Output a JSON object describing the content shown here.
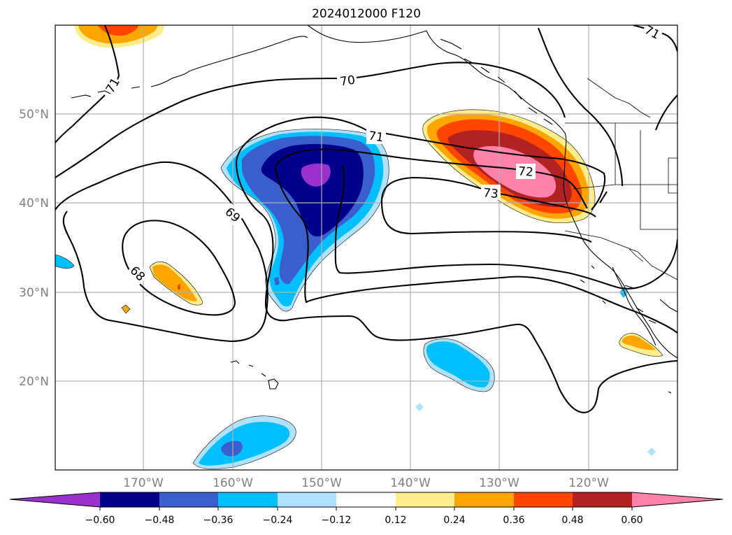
{
  "title": "2024012000 F120",
  "grid_labels": {
    "lat": [
      "50°N",
      "40°N",
      "30°N",
      "20°N"
    ],
    "lon": [
      "170°W",
      "160°W",
      "150°W",
      "140°W",
      "130°W",
      "120°W"
    ]
  },
  "contour_labels": [
    "71",
    "70",
    "71",
    "72",
    "73",
    "69",
    "68",
    "71"
  ],
  "colorbar": {
    "ticks": [
      "−0.60",
      "−0.48",
      "−0.36",
      "−0.24",
      "−0.12",
      "0.12",
      "0.24",
      "0.36",
      "0.48",
      "0.60"
    ],
    "colors": [
      "#9932cc",
      "#00008b",
      "#3a5fcd",
      "#00bfff",
      "#b0e2ff",
      "#ffffff",
      "#ffec8b",
      "#ffa500",
      "#ff4500",
      "#b22222",
      "#ff82ab"
    ]
  },
  "legend": {
    "anomaly_colors": {
      "neg_extreme": "#9932cc",
      "neg_strong": "#00008b",
      "neg_mid": "#3a5fcd",
      "neg_weak": "#00bfff",
      "neg_faint": "#b0e2ff",
      "pos_faint": "#ffec8b",
      "pos_weak": "#ffa500",
      "pos_mid": "#ff4500",
      "pos_strong": "#b22222",
      "pos_extreme": "#ff82ab"
    }
  }
}
